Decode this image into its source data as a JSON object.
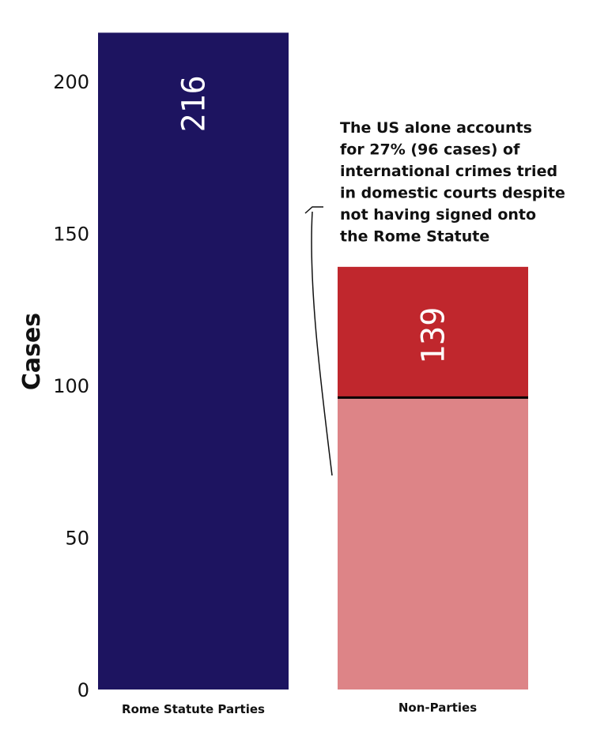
{
  "chart_data": {
    "type": "bar",
    "title": "",
    "xlabel": "",
    "ylabel": "Cases",
    "ylim": [
      0,
      216
    ],
    "yticks": [
      0,
      50,
      100,
      150,
      200
    ],
    "categories": [
      "Rome Statute Parties",
      "Non-Parties"
    ],
    "values": [
      216,
      139
    ],
    "data_labels": [
      "216",
      "139"
    ],
    "highlight": {
      "category": "Non-Parties",
      "value": 96
    },
    "annotation": [
      "The US alone accounts",
      "for 27% (96 cases) of",
      "international crimes tried",
      "in domestic courts despite",
      "not having signed onto",
      "the Rome Statute"
    ],
    "grid": false,
    "colors": {
      "parties": "#1d1460",
      "non_parties_top": "#c0272d",
      "non_parties_us": "#dd8487",
      "divider": "#000000"
    }
  }
}
